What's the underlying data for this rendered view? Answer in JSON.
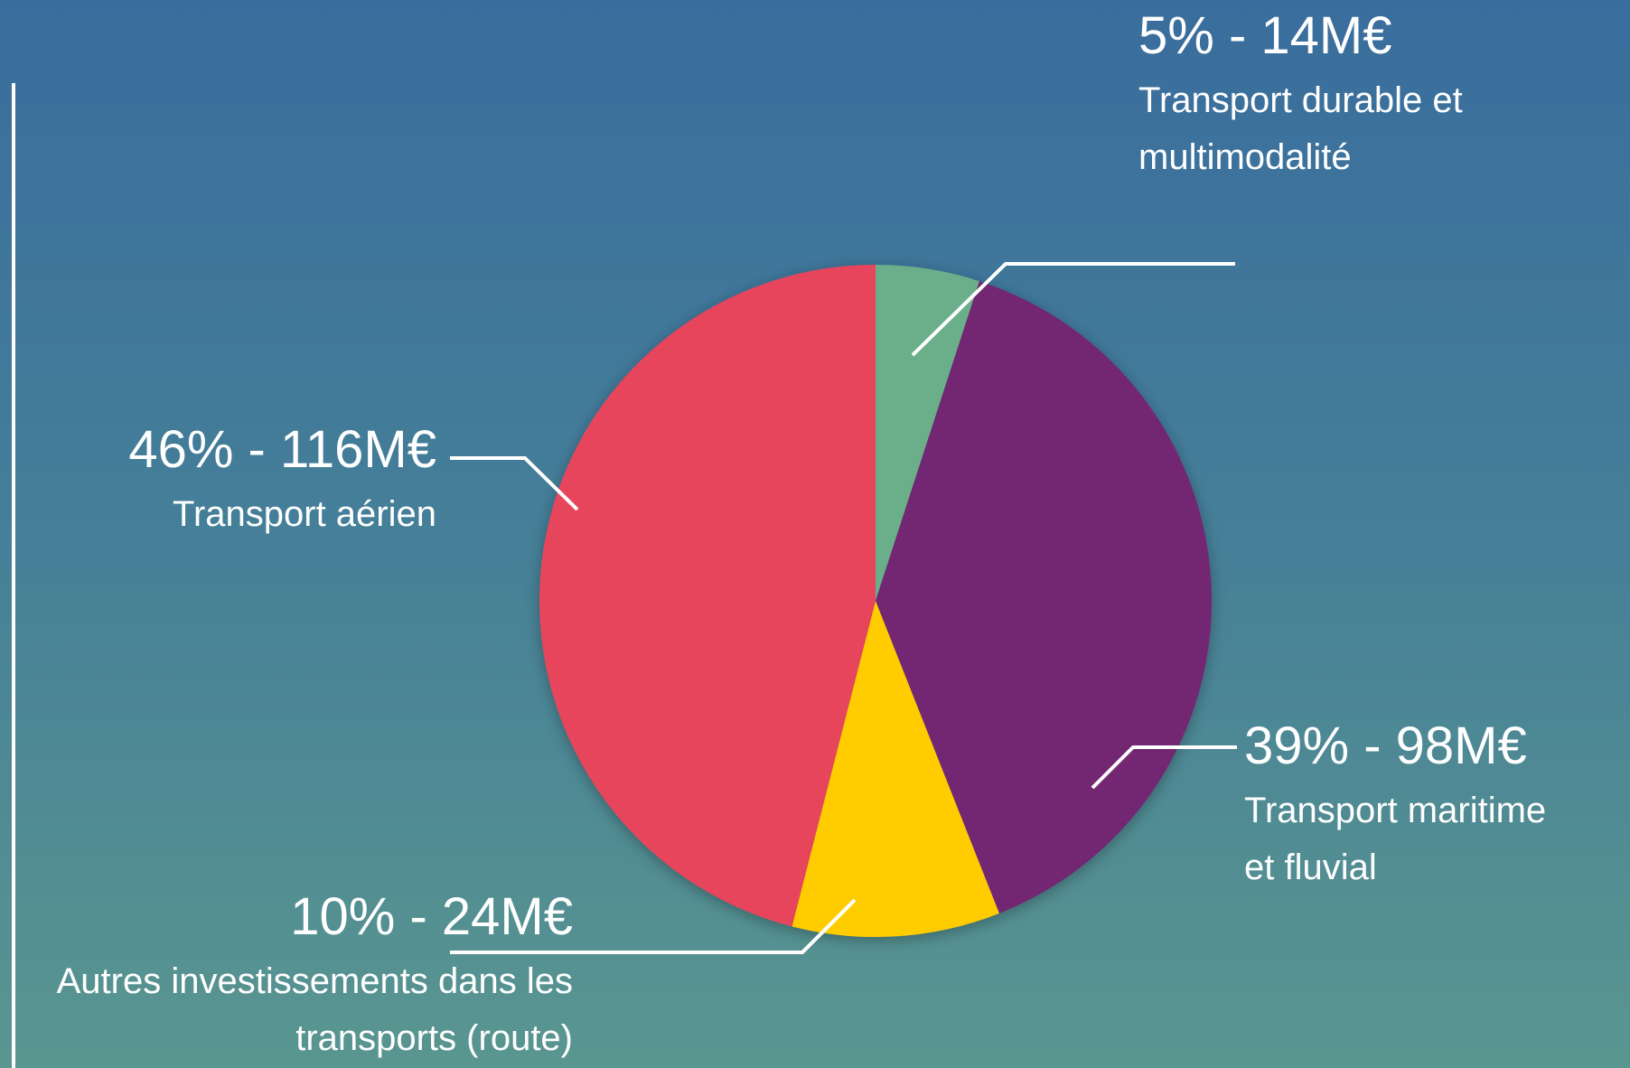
{
  "chart_data": {
    "type": "pie",
    "categories": [
      "Transport durable et multimodalité",
      "Transport maritime et fluvial",
      "Autres investissements dans les transports (route)",
      "Transport aérien"
    ],
    "values": [
      5,
      39,
      10,
      46
    ],
    "value_labels": [
      "5% - 14M€",
      "39% - 98M€",
      "10% - 24M€",
      "46% - 116M€"
    ],
    "colors": [
      "#6aaf8a",
      "#732672",
      "#ffcc00",
      "#e6455c"
    ]
  }
}
